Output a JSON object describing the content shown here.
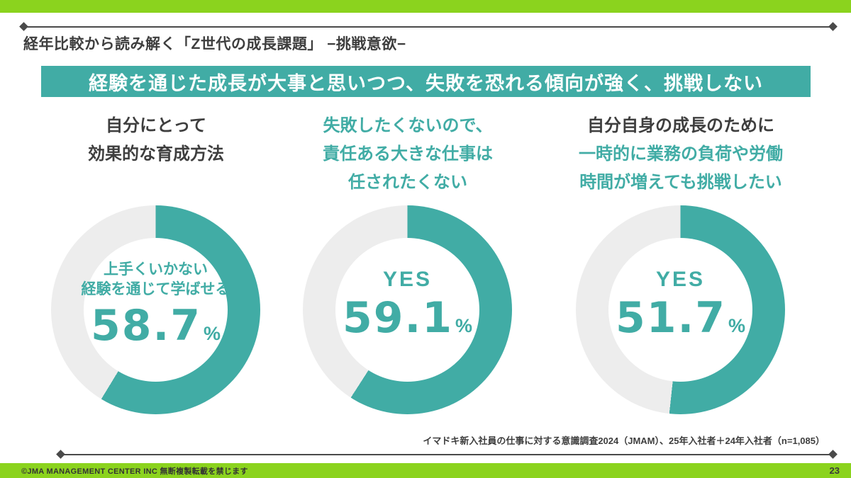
{
  "page": {
    "title": "経年比較から読み解く「Z世代の成長課題」 −挑戦意欲−",
    "banner": "経験を通じた成長が大事と思いつつ、失敗を恐れる傾向が強く、挑戦しない",
    "source_note": "イマドキ新入社員の仕事に対する意識調査2024（JMAM）、25年入社者＋24年入社者（n=1,085）",
    "copyright": "©JMA MANAGEMENT CENTER INC  無断複製転載を禁じます",
    "page_number": "23"
  },
  "colors": {
    "lime": "#8BD31E",
    "teal": "#41ACA5",
    "ring_gray": "#EDEDED",
    "text_dark": "#3E3E3E"
  },
  "columns": [
    {
      "heading_dark": [
        "自分にとって",
        "効果的な育成方法"
      ],
      "heading_teal": [],
      "center_label": [
        "上手くいかない",
        "経験を通じて学ばせる"
      ],
      "value_text": "58.7",
      "unit": "%"
    },
    {
      "heading_dark": [],
      "heading_teal": [
        "失敗したくないので、",
        "責任ある大きな仕事は",
        "任されたくない"
      ],
      "center_label": [
        "YES"
      ],
      "value_text": "59.1",
      "unit": "%"
    },
    {
      "heading_dark": [
        "自分自身の成長のために"
      ],
      "heading_teal": [
        "一時的に業務の負荷や労働",
        "時間が増えても挑戦したい"
      ],
      "center_label": [
        "YES"
      ],
      "value_text": "51.7",
      "unit": "%"
    }
  ],
  "chart_data": [
    {
      "type": "pie",
      "subtype": "donut",
      "title": "自分にとって効果的な育成方法",
      "labels": [
        "上手くいかない経験を通じて学ばせる",
        ""
      ],
      "values": [
        58.7,
        41.3
      ],
      "unit": "%",
      "legend": "none",
      "start_angle_deg": 0,
      "direction": "clockwise"
    },
    {
      "type": "pie",
      "subtype": "donut",
      "title": "失敗したくないので、責任ある大きな仕事は任されたくない",
      "labels": [
        "YES",
        ""
      ],
      "values": [
        59.1,
        40.9
      ],
      "unit": "%",
      "legend": "none",
      "start_angle_deg": 0,
      "direction": "clockwise"
    },
    {
      "type": "pie",
      "subtype": "donut",
      "title": "自分自身の成長のために一時的に業務の負荷や労働時間が増えても挑戦したい",
      "labels": [
        "YES",
        ""
      ],
      "values": [
        51.7,
        48.3
      ],
      "unit": "%",
      "legend": "none",
      "start_angle_deg": 0,
      "direction": "clockwise"
    }
  ]
}
